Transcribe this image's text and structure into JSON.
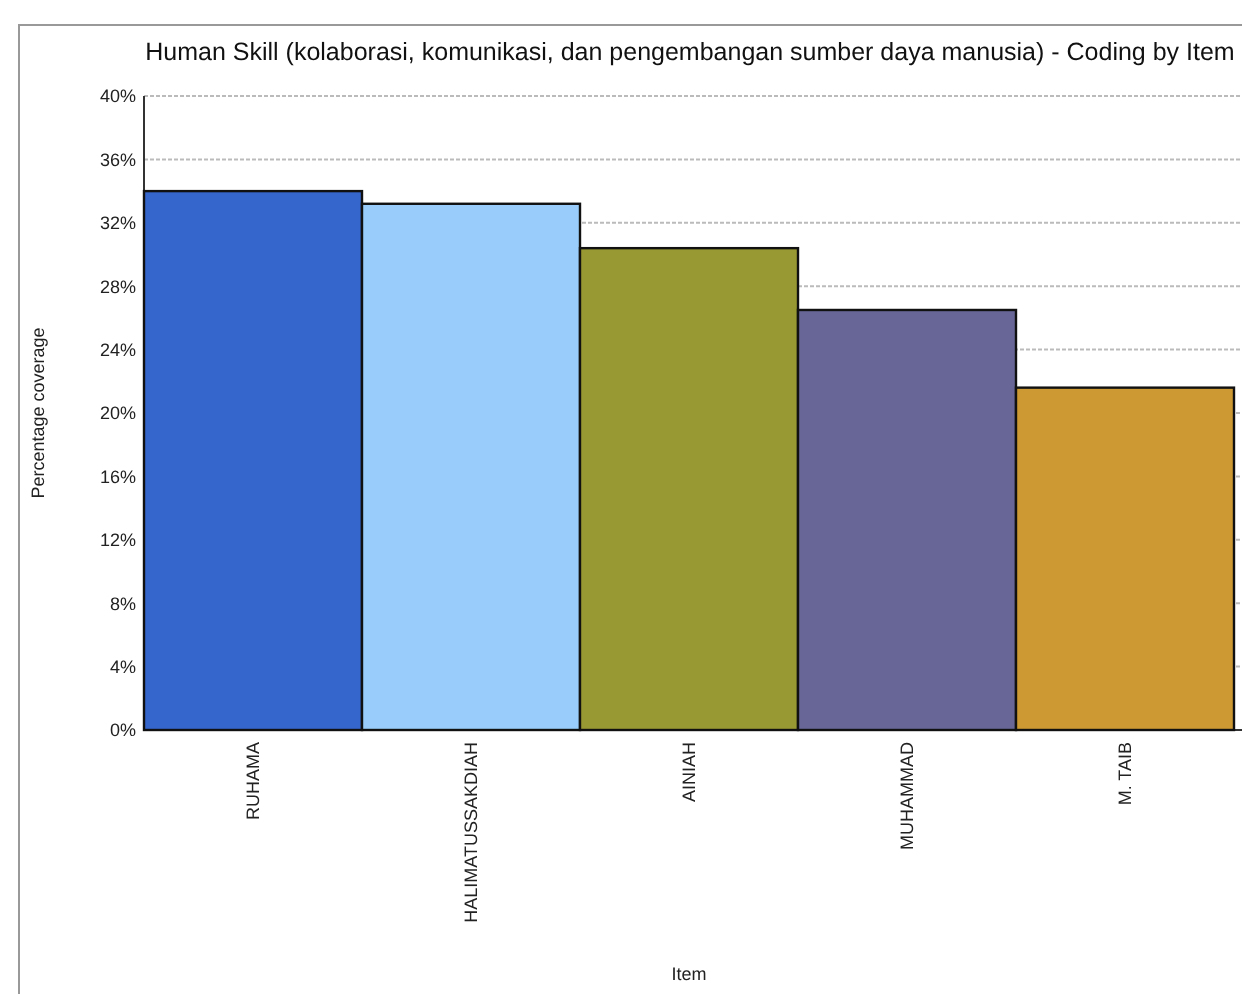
{
  "chart_data": {
    "type": "bar",
    "title": "Human Skill (kolaborasi, komunikasi, dan pengembangan sumber daya manusia) - Coding by Item",
    "xlabel": "Item",
    "ylabel": "Percentage coverage",
    "categories": [
      "RUHAMA",
      "HALIMATUSSAKDIAH",
      "AINIAH",
      "MUHAMMAD",
      "M. TAIB"
    ],
    "values": [
      34.0,
      33.2,
      30.4,
      26.5,
      21.6
    ],
    "colors": [
      "#3566cc",
      "#99ccfb",
      "#999933",
      "#676697",
      "#cc9933"
    ],
    "ylim": [
      0,
      40
    ],
    "yticks": [
      {
        "value": 0,
        "label": "0%"
      },
      {
        "value": 4,
        "label": "4%"
      },
      {
        "value": 8,
        "label": "8%"
      },
      {
        "value": 12,
        "label": "12%"
      },
      {
        "value": 16,
        "label": "16%"
      },
      {
        "value": 20,
        "label": "20%"
      },
      {
        "value": 24,
        "label": "24%"
      },
      {
        "value": 28,
        "label": "28%"
      },
      {
        "value": 32,
        "label": "32%"
      },
      {
        "value": 36,
        "label": "36%"
      },
      {
        "value": 40,
        "label": "40%"
      }
    ],
    "grid": "y"
  }
}
